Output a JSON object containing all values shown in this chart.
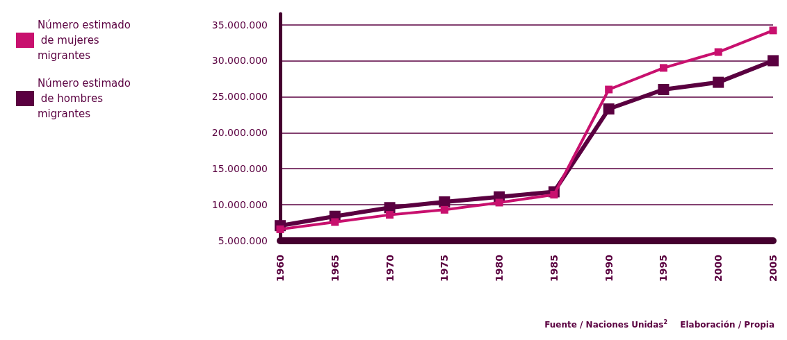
{
  "chart_data": {
    "type": "line",
    "categories": [
      "1960",
      "1965",
      "1970",
      "1975",
      "1980",
      "1985",
      "1990",
      "1995",
      "2000",
      "2005"
    ],
    "series": [
      {
        "name": "Número estimado de mujeres migrantes",
        "color": "#c8106e",
        "values": [
          6600000,
          7600000,
          8600000,
          9300000,
          10300000,
          11400000,
          26000000,
          29000000,
          31200000,
          34200000
        ]
      },
      {
        "name": "Número estimado de hombres migrantes",
        "color": "#5a0040",
        "values": [
          7100000,
          8400000,
          9600000,
          10400000,
          11100000,
          11800000,
          23300000,
          26000000,
          27000000,
          30000000
        ]
      }
    ],
    "ylim": [
      5000000,
      36500000
    ],
    "yticks": [
      {
        "value": 5000000,
        "label": "5.000.000"
      },
      {
        "value": 10000000,
        "label": "10.000.000"
      },
      {
        "value": 15000000,
        "label": "15.000.000"
      },
      {
        "value": 20000000,
        "label": "20.000.000"
      },
      {
        "value": 25000000,
        "label": "25.000.000"
      },
      {
        "value": 30000000,
        "label": "30.000.000"
      },
      {
        "value": 35000000,
        "label": "35.000.000"
      }
    ],
    "grid": "y",
    "legend": "top left",
    "marker": "square",
    "line_style": "solid",
    "annotations": [
      "Fuente / Naciones Unidas$^{2}$",
      "Elaboración / Propia"
    ]
  }
}
